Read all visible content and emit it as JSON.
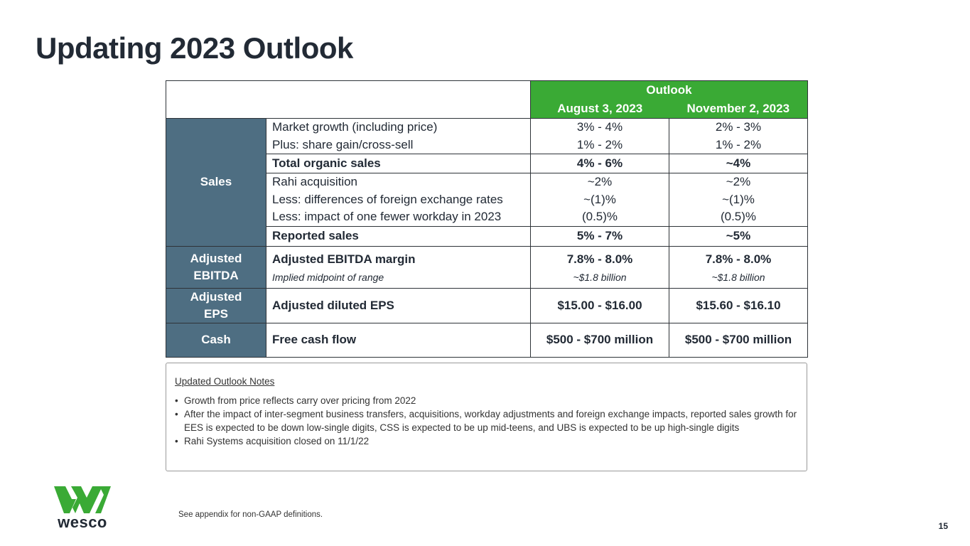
{
  "title": "Updating 2023 Outlook",
  "table": {
    "outlook_label": "Outlook",
    "col1": "August 3, 2023",
    "col2": "November 2, 2023",
    "sales": {
      "category": "Sales",
      "rows": [
        {
          "items": [
            "Market growth (including price)",
            "Plus: share gain/cross-sell"
          ],
          "aug": [
            "3% - 4%",
            "1% - 2%"
          ],
          "nov": [
            "2% - 3%",
            "1% - 2%"
          ]
        },
        {
          "items": [
            "Total organic sales"
          ],
          "aug": [
            "4% - 6%"
          ],
          "nov": [
            "~4%"
          ]
        },
        {
          "items": [
            "Rahi acquisition",
            "Less: differences of foreign exchange rates",
            "Less: impact of one fewer workday in 2023"
          ],
          "aug": [
            "~2%",
            "~(1)%",
            "(0.5)%"
          ],
          "nov": [
            "~2%",
            "~(1)%",
            "(0.5)%"
          ]
        },
        {
          "items": [
            "Reported sales"
          ],
          "aug": [
            "5% - 7%"
          ],
          "nov": [
            "~5%"
          ]
        }
      ]
    },
    "ebitda": {
      "category_line1": "Adjusted",
      "category_line2": "EBITDA",
      "item": "Adjusted EBITDA margin",
      "subitem": "Implied midpoint of range",
      "aug": "7.8% - 8.0%",
      "aug_sub": "~$1.8 billion",
      "nov": "7.8% - 8.0%",
      "nov_sub": "~$1.8 billion"
    },
    "eps": {
      "category_line1": "Adjusted",
      "category_line2": "EPS",
      "item": "Adjusted diluted EPS",
      "aug": "$15.00 - $16.00",
      "nov": "$15.60 - $16.10"
    },
    "cash": {
      "category": "Cash",
      "item": "Free cash flow",
      "aug": "$500 - $700 million",
      "nov": "$500 - $700 million"
    }
  },
  "notes": {
    "heading": "Updated Outlook Notes",
    "bullets": [
      "Growth from price reflects carry over pricing from 2022",
      "After the impact of inter-segment business transfers, acquisitions, workday adjustments and foreign exchange impacts, reported sales growth for EES is expected to be down low-single digits, CSS is expected to be up mid-teens, and UBS is expected to be up high-single digits",
      "Rahi Systems acquisition closed on 11/1/22"
    ]
  },
  "logo": {
    "text": "wesco",
    "color": "#3aaa35"
  },
  "colors": {
    "header_green": "#3aaa35",
    "category_blue": "#4e6e82",
    "title": "#222a35"
  },
  "footnote": "See appendix for non-GAAP definitions.",
  "page_number": "15"
}
